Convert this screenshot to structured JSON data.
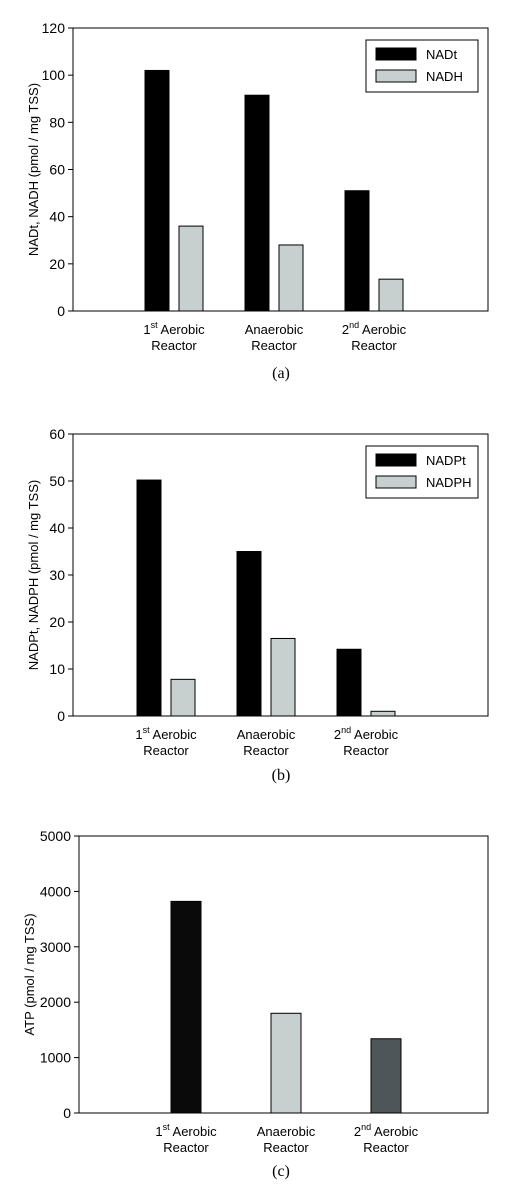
{
  "chart_data": [
    {
      "type": "bar",
      "panel_label": "(a)",
      "ylabel": "NADt, NADH (pmol / mg TSS)",
      "ylim": [
        0,
        120
      ],
      "yticks": [
        0,
        20,
        40,
        60,
        80,
        100,
        120
      ],
      "categories": [
        {
          "line1": "Aerobic",
          "sup": "st",
          "prefix": "1",
          "line2": "Reactor"
        },
        {
          "line1": "Anaerobic",
          "line2": "Reactor"
        },
        {
          "line1": "Aerobic",
          "sup": "nd",
          "prefix": "2",
          "line2": "Reactor"
        }
      ],
      "series": [
        {
          "name": "NADt",
          "color": "#000000",
          "values": [
            102,
            91.5,
            51
          ]
        },
        {
          "name": "NADH",
          "color": "#c8cfcf",
          "values": [
            36,
            28,
            13.5
          ]
        }
      ],
      "legend": "top-right",
      "grid": false
    },
    {
      "type": "bar",
      "panel_label": "(b)",
      "ylabel": "NADPt, NADPH (pmol / mg TSS)",
      "ylim": [
        0,
        60
      ],
      "yticks": [
        0,
        10,
        20,
        30,
        40,
        50,
        60
      ],
      "categories": [
        {
          "line1": "Aerobic",
          "sup": "st",
          "prefix": "1",
          "line2": "Reactor"
        },
        {
          "line1": "Anaerobic",
          "line2": "Reactor"
        },
        {
          "line1": "Aerobic",
          "sup": "nd",
          "prefix": "2",
          "line2": "Reactor"
        }
      ],
      "series": [
        {
          "name": "NADPt",
          "color": "#000000",
          "values": [
            50.2,
            35,
            14.2
          ]
        },
        {
          "name": "NADPH",
          "color": "#c8cfcf",
          "values": [
            7.8,
            16.5,
            1
          ]
        }
      ],
      "legend": "top-right",
      "grid": false
    },
    {
      "type": "bar",
      "panel_label": "(c)",
      "ylabel": "ATP (pmol / mg TSS)",
      "ylim": [
        0,
        5000
      ],
      "yticks": [
        0,
        1000,
        2000,
        3000,
        4000,
        5000
      ],
      "categories": [
        {
          "line1": "Aerobic",
          "sup": "st",
          "prefix": "1",
          "line2": "Reactor"
        },
        {
          "line1": "Anaerobic",
          "line2": "Reactor"
        },
        {
          "line1": "Aerobic",
          "sup": "nd",
          "prefix": "2",
          "line2": "Reactor"
        }
      ],
      "series": [
        {
          "colors": [
            "#0a0a0a",
            "#c8cfcf",
            "#4f565a"
          ],
          "values": [
            3820,
            1800,
            1340
          ]
        }
      ],
      "legend": "none",
      "grid": false
    }
  ]
}
